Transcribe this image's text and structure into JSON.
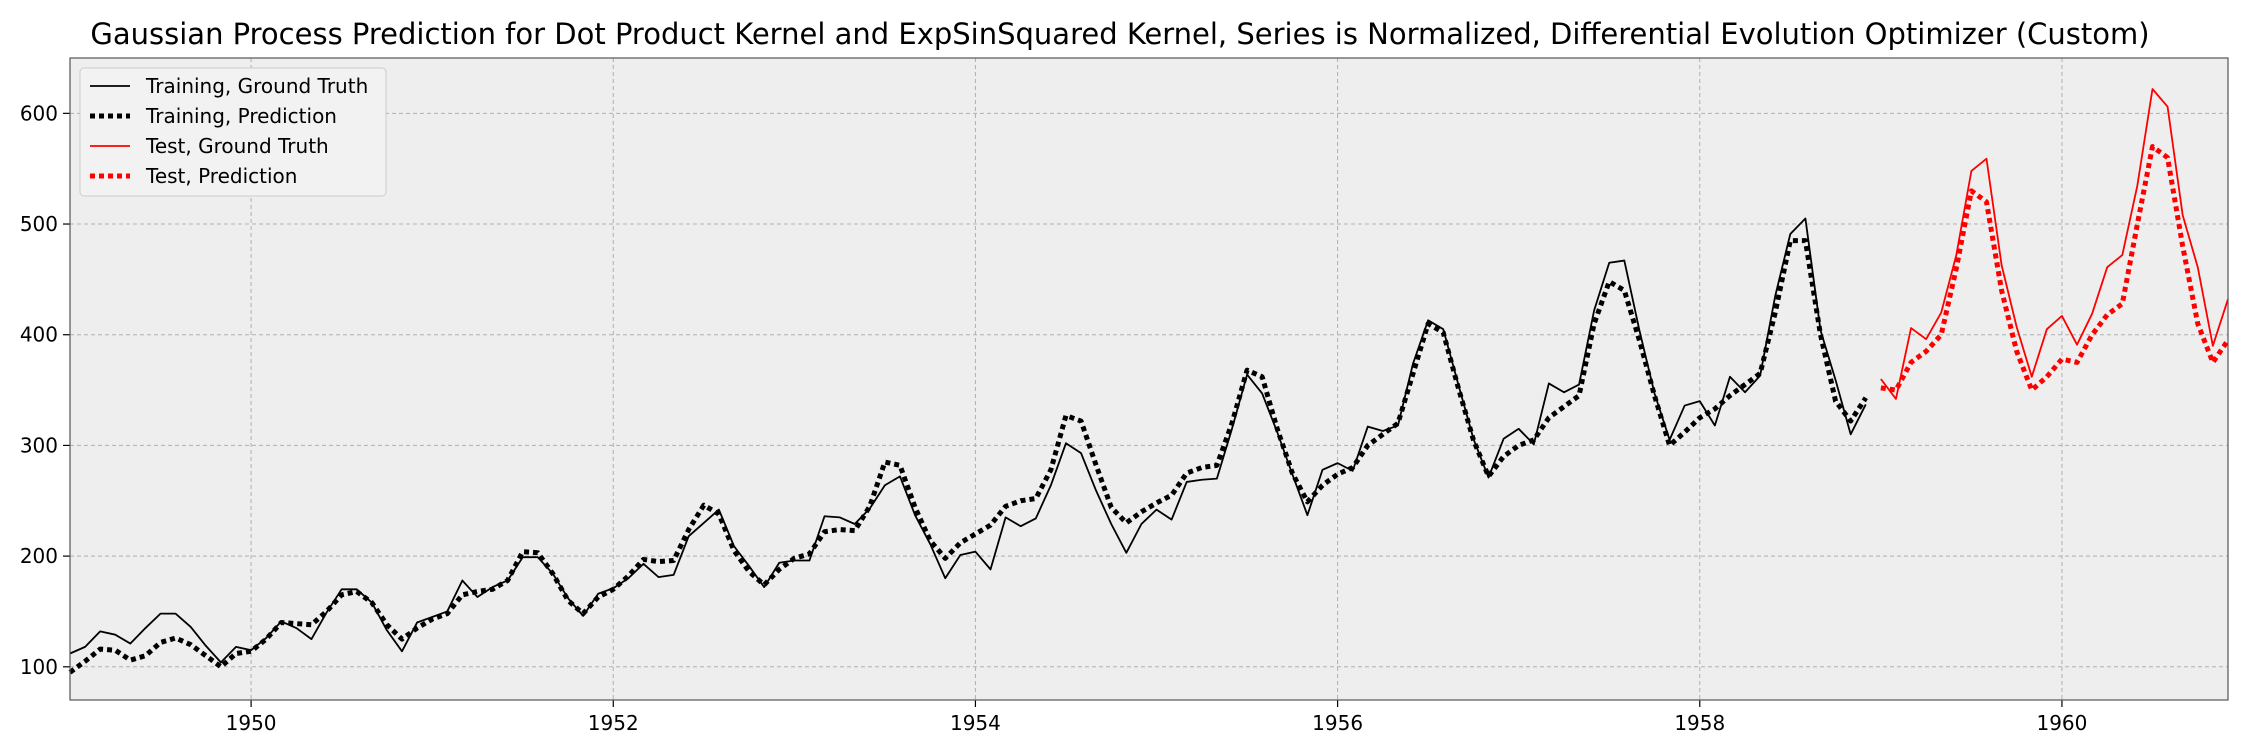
{
  "chart_data": {
    "type": "line",
    "title": "Gaussian Process Prediction for Dot Product Kernel and ExpSinSquared Kernel, Series is Normalized,  Differential Evolution Optimizer (Custom)",
    "xlabel": "",
    "ylabel": "",
    "xlim": [
      1949.0,
      1960.917
    ],
    "ylim": [
      70,
      650
    ],
    "x_ticks": [
      1950,
      1952,
      1954,
      1956,
      1958,
      1960
    ],
    "y_ticks": [
      100,
      200,
      300,
      400,
      500,
      600
    ],
    "grid": true,
    "legend_position": "top-left",
    "colors": {
      "train": "#000000",
      "test": "#ff0000",
      "plot_bg": "#eeeeee",
      "grid": "#b0b0b0"
    },
    "series": [
      {
        "name": "Training, Ground Truth",
        "color": "#000000",
        "style": "solid",
        "x_start": 1949.0,
        "x_step": 0.0833333,
        "values": [
          112,
          118,
          132,
          129,
          121,
          135,
          148,
          148,
          136,
          119,
          104,
          118,
          115,
          126,
          141,
          135,
          125,
          149,
          170,
          170,
          158,
          133,
          114,
          140,
          145,
          150,
          178,
          163,
          172,
          178,
          199,
          199,
          184,
          162,
          146,
          166,
          171,
          180,
          193,
          181,
          183,
          218,
          230,
          242,
          209,
          191,
          172,
          194,
          196,
          196,
          236,
          235,
          229,
          243,
          264,
          272,
          237,
          211,
          180,
          201,
          204,
          188,
          235,
          227,
          234,
          264,
          302,
          293,
          259,
          229,
          203,
          229,
          242,
          233,
          267,
          269,
          270,
          315,
          364,
          347,
          312,
          274,
          237,
          278,
          284,
          277,
          317,
          313,
          318,
          374,
          413,
          405,
          355,
          306,
          271,
          306,
          315,
          301,
          356,
          348,
          355,
          422,
          465,
          467,
          404,
          347,
          305,
          336,
          340,
          318,
          362,
          348,
          363,
          435,
          491,
          505,
          404,
          359,
          310,
          337
        ]
      },
      {
        "name": "Training, Prediction",
        "color": "#000000",
        "style": "dotted",
        "x_start": 1949.0,
        "x_step": 0.0833333,
        "values": [
          95,
          105,
          116,
          115,
          106,
          110,
          122,
          126,
          120,
          110,
          100,
          112,
          114,
          125,
          140,
          139,
          138,
          150,
          165,
          168,
          158,
          138,
          125,
          135,
          143,
          148,
          165,
          168,
          170,
          178,
          204,
          203,
          184,
          160,
          148,
          163,
          170,
          182,
          197,
          195,
          196,
          224,
          246,
          238,
          205,
          186,
          174,
          188,
          198,
          202,
          222,
          224,
          223,
          245,
          285,
          282,
          244,
          214,
          198,
          212,
          220,
          228,
          245,
          250,
          252,
          278,
          327,
          322,
          282,
          244,
          230,
          240,
          248,
          255,
          275,
          280,
          282,
          320,
          368,
          362,
          315,
          275,
          249,
          264,
          274,
          280,
          300,
          310,
          320,
          365,
          410,
          402,
          352,
          305,
          272,
          290,
          300,
          305,
          325,
          335,
          345,
          410,
          448,
          440,
          395,
          345,
          300,
          312,
          325,
          333,
          345,
          355,
          365,
          420,
          485,
          485,
          400,
          340,
          322,
          343
        ]
      },
      {
        "name": "Test, Ground Truth",
        "color": "#ff0000",
        "style": "solid",
        "x_start": 1959.0,
        "x_step": 0.0833333,
        "values": [
          360,
          342,
          406,
          396,
          420,
          472,
          548,
          559,
          463,
          407,
          362,
          405,
          417,
          391,
          419,
          461,
          472,
          535,
          622,
          606,
          508,
          461,
          390,
          432
        ]
      },
      {
        "name": "Test, Prediction",
        "color": "#ff0000",
        "style": "dotted",
        "x_start": 1959.0,
        "x_step": 0.0833333,
        "values": [
          352,
          350,
          375,
          385,
          400,
          460,
          530,
          520,
          440,
          385,
          350,
          362,
          378,
          375,
          400,
          418,
          428,
          500,
          570,
          560,
          480,
          410,
          375,
          395
        ]
      }
    ]
  }
}
